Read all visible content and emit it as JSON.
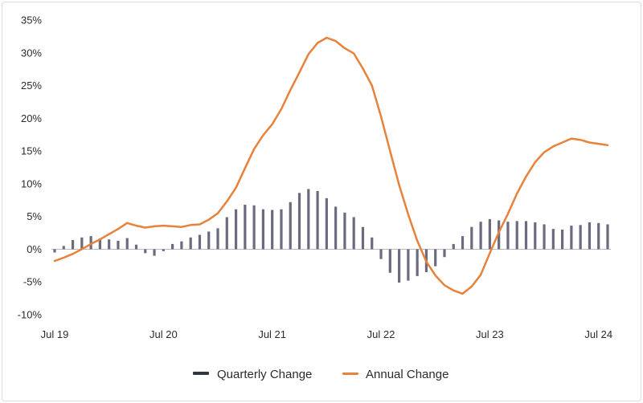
{
  "chart_data": {
    "type": "bar+line",
    "x_tick_labels": [
      "Jul 19",
      "Jul 20",
      "Jul 21",
      "Jul 22",
      "Jul 23",
      "Jul 24"
    ],
    "y_tick_labels": [
      "35%",
      "30%",
      "25%",
      "20%",
      "15%",
      "10%",
      "5%",
      "0%",
      "-5%",
      "-10%"
    ],
    "ylim": [
      -10,
      35
    ],
    "grid": false,
    "legend_position": "bottom-center",
    "colors": {
      "quarterly": "#6b6a7f",
      "annual": "#e8813a"
    },
    "series": [
      {
        "name": "Quarterly Change",
        "kind": "bar",
        "values": [
          -0.5,
          0.5,
          1.4,
          1.8,
          2.0,
          1.6,
          1.5,
          1.3,
          1.7,
          0.7,
          -0.6,
          -1.0,
          -0.3,
          0.8,
          1.2,
          1.8,
          2.2,
          2.7,
          3.2,
          4.9,
          6.1,
          6.8,
          6.7,
          6.1,
          6.0,
          6.1,
          7.2,
          8.6,
          9.2,
          8.9,
          7.8,
          6.5,
          5.6,
          4.9,
          3.4,
          1.8,
          -1.5,
          -3.6,
          -5.1,
          -4.8,
          -4.1,
          -3.5,
          -2.6,
          -1.2,
          0.8,
          2.0,
          3.4,
          4.2,
          4.6,
          4.4,
          4.2,
          4.3,
          4.3,
          4.1,
          3.8,
          3.1,
          3.0,
          3.6,
          3.7,
          4.1,
          4.0,
          3.8
        ]
      },
      {
        "name": "Annual Change",
        "kind": "line",
        "values": [
          -1.8,
          -1.3,
          -0.7,
          0.0,
          0.8,
          1.5,
          2.3,
          3.1,
          4.0,
          3.6,
          3.3,
          3.5,
          3.6,
          3.5,
          3.4,
          3.7,
          3.8,
          4.5,
          5.5,
          7.3,
          9.4,
          12.4,
          15.3,
          17.4,
          19.1,
          21.4,
          24.3,
          27.0,
          29.8,
          31.5,
          32.3,
          31.8,
          30.7,
          29.9,
          27.6,
          25.0,
          20.3,
          15.0,
          9.8,
          5.3,
          1.3,
          -1.9,
          -4.0,
          -5.5,
          -6.3,
          -6.8,
          -5.7,
          -3.9,
          -0.6,
          2.6,
          5.4,
          8.5,
          11.1,
          13.3,
          14.8,
          15.7,
          16.3,
          16.9,
          16.7,
          16.3,
          16.1,
          15.9
        ]
      }
    ]
  }
}
